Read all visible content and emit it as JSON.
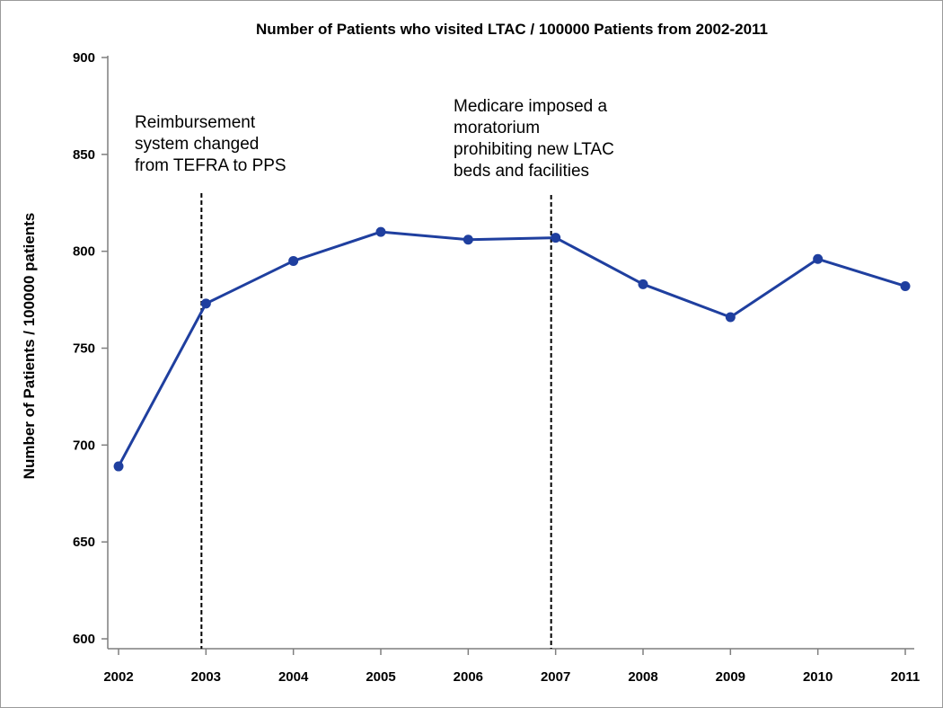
{
  "chart_data": {
    "type": "line",
    "title": "Number of Patients who visited LTAC / 100000 Patients from 2002-2011",
    "xlabel": "",
    "ylabel": "Number of Patients / 100000 patients",
    "x": [
      "2002",
      "2003",
      "2004",
      "2005",
      "2006",
      "2007",
      "2008",
      "2009",
      "2010",
      "2011"
    ],
    "yticks": [
      "600",
      "650",
      "700",
      "750",
      "800",
      "850",
      "900"
    ],
    "ylim": [
      600,
      900
    ],
    "grid": false,
    "series": [
      {
        "values": [
          689,
          773,
          795,
          810,
          806,
          807,
          783,
          766,
          796,
          782
        ]
      }
    ],
    "annotations": [
      {
        "x": "2003",
        "lines": [
          "Reimbursement",
          "system changed",
          "from TEFRA to PPS"
        ]
      },
      {
        "x": "2007",
        "lines": [
          "Medicare imposed a",
          "moratorium",
          "prohibiting new LTAC",
          "beds and facilities"
        ]
      }
    ],
    "colors": {
      "series": "#1f3f9f",
      "reference_line": "#000000",
      "axis": "#7f7f7f"
    }
  }
}
